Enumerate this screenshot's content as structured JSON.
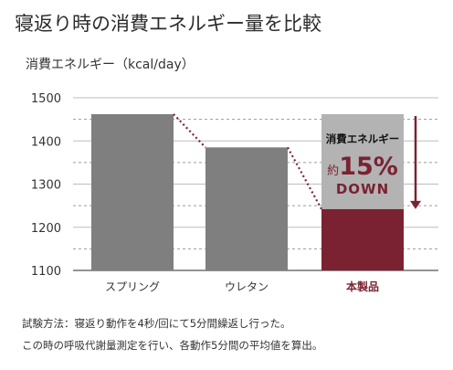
{
  "title": "寝返り時の消費エネルギー量を比較",
  "chart_data": {
    "type": "bar",
    "unit_label": "消費エネルギー（kcal/day）",
    "categories": [
      "スプリング",
      "ウレタン",
      "本製品"
    ],
    "values": [
      1462,
      1385,
      1242
    ],
    "reference_value": 1462,
    "ylim": [
      1100,
      1500
    ],
    "yticks": [
      1100,
      1200,
      1300,
      1400,
      1500
    ],
    "grid": true,
    "colors": {
      "bar_gray": "#7f7f7f",
      "bar_red": "#7b2232",
      "reduction_box": "#b3b3b3",
      "dotted_line": "#7b2232",
      "arrow": "#7b2232",
      "highlight_label": "#7b2232"
    },
    "annotation": {
      "line1": "消費エネルギー",
      "prefix": "約",
      "percent": "15%",
      "down": "DOWN"
    }
  },
  "notes": [
    "試験方法：寝返り動作を4秒/回にて5分間繰返し行った。",
    "この時の呼吸代謝量測定を行い、各動作5分間の平均値を算出。"
  ]
}
